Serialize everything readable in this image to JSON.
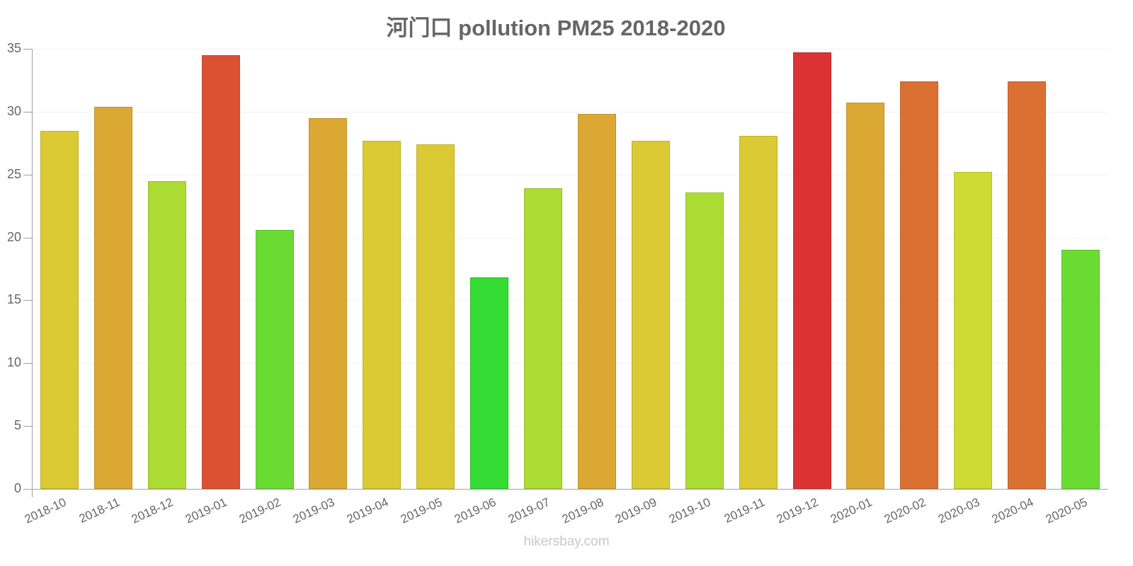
{
  "title": "河门口 pollution PM25 2018-2020",
  "credit": "hikersbay.com",
  "chart_data": {
    "type": "bar",
    "title": "河门口 pollution PM25 2018-2020",
    "xlabel": "",
    "ylabel": "",
    "ylim": [
      0,
      35
    ],
    "yticks": [
      0,
      5,
      10,
      15,
      20,
      25,
      30,
      35
    ],
    "grid": true,
    "legend": null,
    "categories": [
      "2018-10",
      "2018-11",
      "2018-12",
      "2019-01",
      "2019-02",
      "2019-03",
      "2019-04",
      "2019-05",
      "2019-06",
      "2019-07",
      "2019-08",
      "2019-09",
      "2019-10",
      "2019-11",
      "2019-12",
      "2020-01",
      "2020-02",
      "2020-03",
      "2020-04",
      "2020-05"
    ],
    "values": [
      28.5,
      30.4,
      24.5,
      34.5,
      20.6,
      29.5,
      27.7,
      27.4,
      16.8,
      23.9,
      29.8,
      27.7,
      23.6,
      28.1,
      34.7,
      30.7,
      32.4,
      25.2,
      32.4,
      19.0
    ],
    "colors": [
      "#dbca33",
      "#dba833",
      "#acdb33",
      "#db5233",
      "#6adb33",
      "#dba833",
      "#dbca33",
      "#dbca33",
      "#33db33",
      "#acdb33",
      "#dba833",
      "#dbca33",
      "#acdb33",
      "#dbca33",
      "#db3333",
      "#dba833",
      "#db7033",
      "#cedb33",
      "#db7033",
      "#6adb33"
    ]
  }
}
